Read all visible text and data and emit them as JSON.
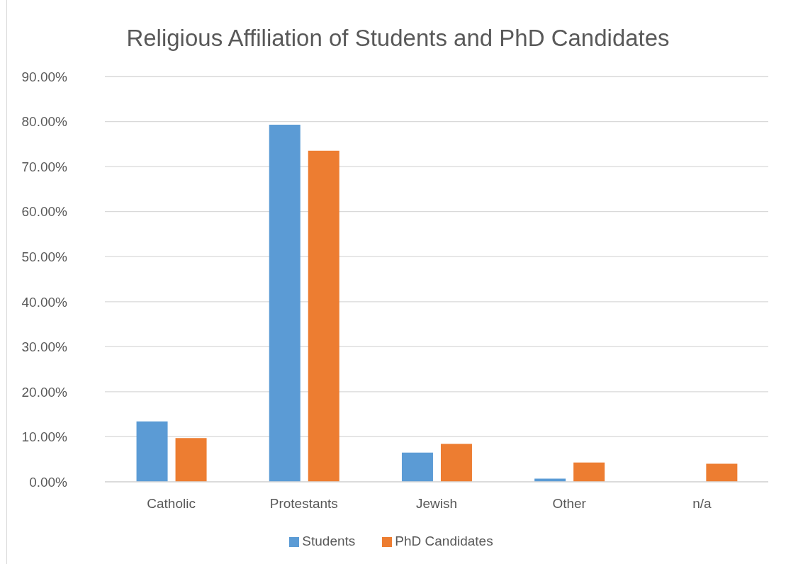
{
  "chart_data": {
    "type": "bar",
    "title": "Religious Affiliation of Students and PhD Candidates",
    "categories": [
      "Catholic",
      "Protestants",
      "Jewish",
      "Other",
      "n/a"
    ],
    "series": [
      {
        "name": "Students",
        "color": "#5b9bd5",
        "values": [
          13.4,
          79.3,
          6.5,
          0.7,
          null
        ]
      },
      {
        "name": "PhD Candidates",
        "color": "#ed7d31",
        "values": [
          9.7,
          73.5,
          8.4,
          4.3,
          4.0
        ]
      }
    ],
    "ylim": [
      0,
      90
    ],
    "yticks": [
      {
        "value": 0,
        "label": "0.00%"
      },
      {
        "value": 10,
        "label": "10.00%"
      },
      {
        "value": 20,
        "label": "20.00%"
      },
      {
        "value": 30,
        "label": "30.00%"
      },
      {
        "value": 40,
        "label": "40.00%"
      },
      {
        "value": 50,
        "label": "50.00%"
      },
      {
        "value": 60,
        "label": "60.00%"
      },
      {
        "value": 70,
        "label": "70.00%"
      },
      {
        "value": 80,
        "label": "80.00%"
      },
      {
        "value": 90,
        "label": "90.00%"
      }
    ],
    "grid": "y",
    "legend": "bottom"
  }
}
